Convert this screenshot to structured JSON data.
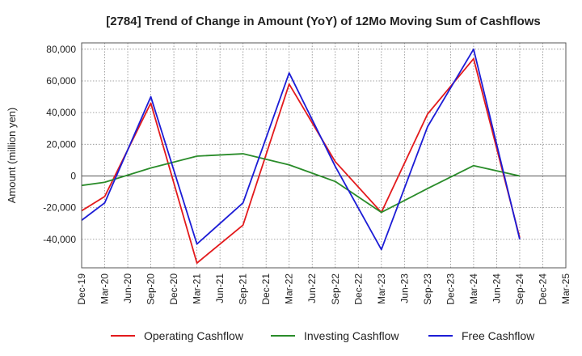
{
  "chart_data": {
    "type": "line",
    "title": "[2784]  Trend of Change in Amount (YoY) of 12Mo Moving Sum of Cashflows",
    "xlabel": "",
    "ylabel": "Amount (million yen)",
    "ylim": [
      -58000,
      84000
    ],
    "yticks": [
      80000,
      60000,
      40000,
      20000,
      0,
      -20000,
      -40000
    ],
    "ytick_labels": [
      "80,000",
      "60,000",
      "40,000",
      "20,000",
      "0",
      "-20,000",
      "-40,000"
    ],
    "categories": [
      "Dec-19",
      "Mar-20",
      "Jun-20",
      "Sep-20",
      "Dec-20",
      "Mar-21",
      "Jun-21",
      "Sep-21",
      "Dec-21",
      "Mar-22",
      "Jun-22",
      "Sep-22",
      "Dec-22",
      "Mar-23",
      "Jun-23",
      "Sep-23",
      "Dec-23",
      "Mar-24",
      "Jun-24",
      "Sep-24",
      "Dec-24",
      "Mar-25"
    ],
    "grid": true,
    "legend_position": "bottom",
    "series": [
      {
        "name": "Operating Cashflow",
        "color": "#e31a1c",
        "values": [
          -22000,
          -13000,
          null,
          46000,
          null,
          -55000,
          null,
          -31000,
          null,
          58000,
          null,
          9000,
          null,
          -23000,
          null,
          39000,
          null,
          74000,
          null,
          -39000,
          null,
          null
        ]
      },
      {
        "name": "Investing Cashflow",
        "color": "#2a8c2a",
        "values": [
          -6000,
          -4000,
          null,
          5000,
          null,
          12500,
          null,
          14000,
          null,
          7000,
          null,
          -3500,
          null,
          -23000,
          null,
          -8000,
          null,
          6500,
          null,
          0,
          null,
          null
        ]
      },
      {
        "name": "Free Cashflow",
        "color": "#1c1cd6",
        "values": [
          -28000,
          -17000,
          null,
          50000,
          null,
          -43000,
          null,
          -17000,
          null,
          65000,
          null,
          6000,
          null,
          -46500,
          null,
          31000,
          null,
          80000,
          null,
          -40000,
          null,
          null
        ]
      }
    ]
  }
}
